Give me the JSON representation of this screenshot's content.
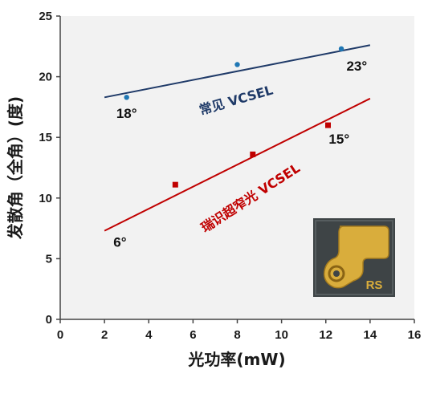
{
  "chart_data": {
    "type": "scatter",
    "xlabel": "光功率(mW)",
    "ylabel": "发散角（全角）(度)",
    "xlim": [
      0,
      16
    ],
    "ylim": [
      0,
      25
    ],
    "xticks": [
      "0",
      "2",
      "4",
      "6",
      "8",
      "10",
      "12",
      "14",
      "16"
    ],
    "yticks": [
      "0",
      "5",
      "10",
      "15",
      "20",
      "25"
    ],
    "grid": false,
    "series": [
      {
        "name": "常见 VCSEL",
        "marker": "circle",
        "color": "#1f77b4",
        "line_color": "#1f3a68",
        "points": [
          [
            3.0,
            18.3
          ],
          [
            8.0,
            21.0
          ],
          [
            12.7,
            22.3
          ]
        ],
        "trendline": [
          [
            2.0,
            18.3
          ],
          [
            14.0,
            22.6
          ]
        ]
      },
      {
        "name": "瑞识超窄光 VCSEL",
        "marker": "square",
        "color": "#c00000",
        "line_color": "#c00000",
        "points": [
          [
            5.2,
            11.1
          ],
          [
            8.7,
            13.6
          ],
          [
            12.1,
            16.0
          ]
        ],
        "trendline": [
          [
            2.0,
            7.3
          ],
          [
            14.0,
            18.2
          ]
        ]
      }
    ],
    "annotations": [
      {
        "text": "18°",
        "x": 3.0,
        "y": 16.6
      },
      {
        "text": "23°",
        "x": 13.4,
        "y": 20.5
      },
      {
        "text": "15°",
        "x": 12.6,
        "y": 14.5
      },
      {
        "text": "6°",
        "x": 2.7,
        "y": 6.0
      }
    ],
    "inset": {
      "text": "RS",
      "background": "#3e4446",
      "pad": "#d4a838"
    }
  }
}
